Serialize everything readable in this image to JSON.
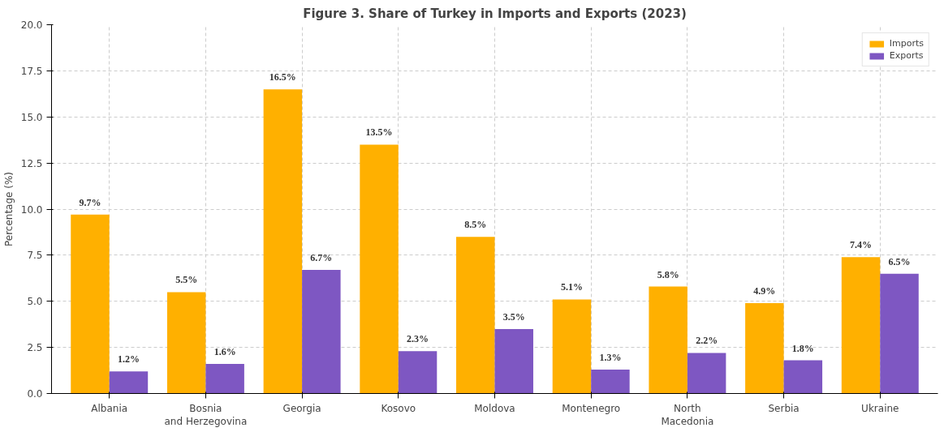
{
  "chart_data": {
    "type": "bar",
    "title": "Figure 3. Share of Turkey in Imports and Exports (2023)",
    "ylabel": "Percentage (%)",
    "categories": [
      "Albania",
      "Bosnia\nand Herzegovina",
      "Georgia",
      "Kosovo",
      "Moldova",
      "Montenegro",
      "North\nMacedonia",
      "Serbia",
      "Ukraine"
    ],
    "series": [
      {
        "name": "Imports",
        "color": "#ffb000",
        "values": [
          9.7,
          5.5,
          16.5,
          13.5,
          8.5,
          5.1,
          5.8,
          4.9,
          7.4
        ],
        "value_labels": [
          "9.7%",
          "5.5%",
          "16.5%",
          "13.5%",
          "8.5%",
          "5.1%",
          "5.8%",
          "4.9%",
          "7.4%"
        ]
      },
      {
        "name": "Exports",
        "color": "#7e57c2",
        "values": [
          1.2,
          1.6,
          6.7,
          2.3,
          3.5,
          1.3,
          2.2,
          1.8,
          6.5
        ],
        "value_labels": [
          "1.2%",
          "1.6%",
          "6.7%",
          "2.3%",
          "3.5%",
          "1.3%",
          "2.2%",
          "1.8%",
          "6.5%"
        ]
      }
    ],
    "ylim": [
      0,
      20
    ],
    "yticks": [
      {
        "value": 0,
        "label": "0.0"
      },
      {
        "value": 2.5,
        "label": "2.5"
      },
      {
        "value": 5,
        "label": "5.0"
      },
      {
        "value": 7.5,
        "label": "7.5"
      },
      {
        "value": 10,
        "label": "10.0"
      },
      {
        "value": 12.5,
        "label": "12.5"
      },
      {
        "value": 15,
        "label": "15.0"
      },
      {
        "value": 17.5,
        "label": "17.5"
      },
      {
        "value": 20,
        "label": "20.0"
      }
    ],
    "grid": true,
    "legend": "top right"
  }
}
